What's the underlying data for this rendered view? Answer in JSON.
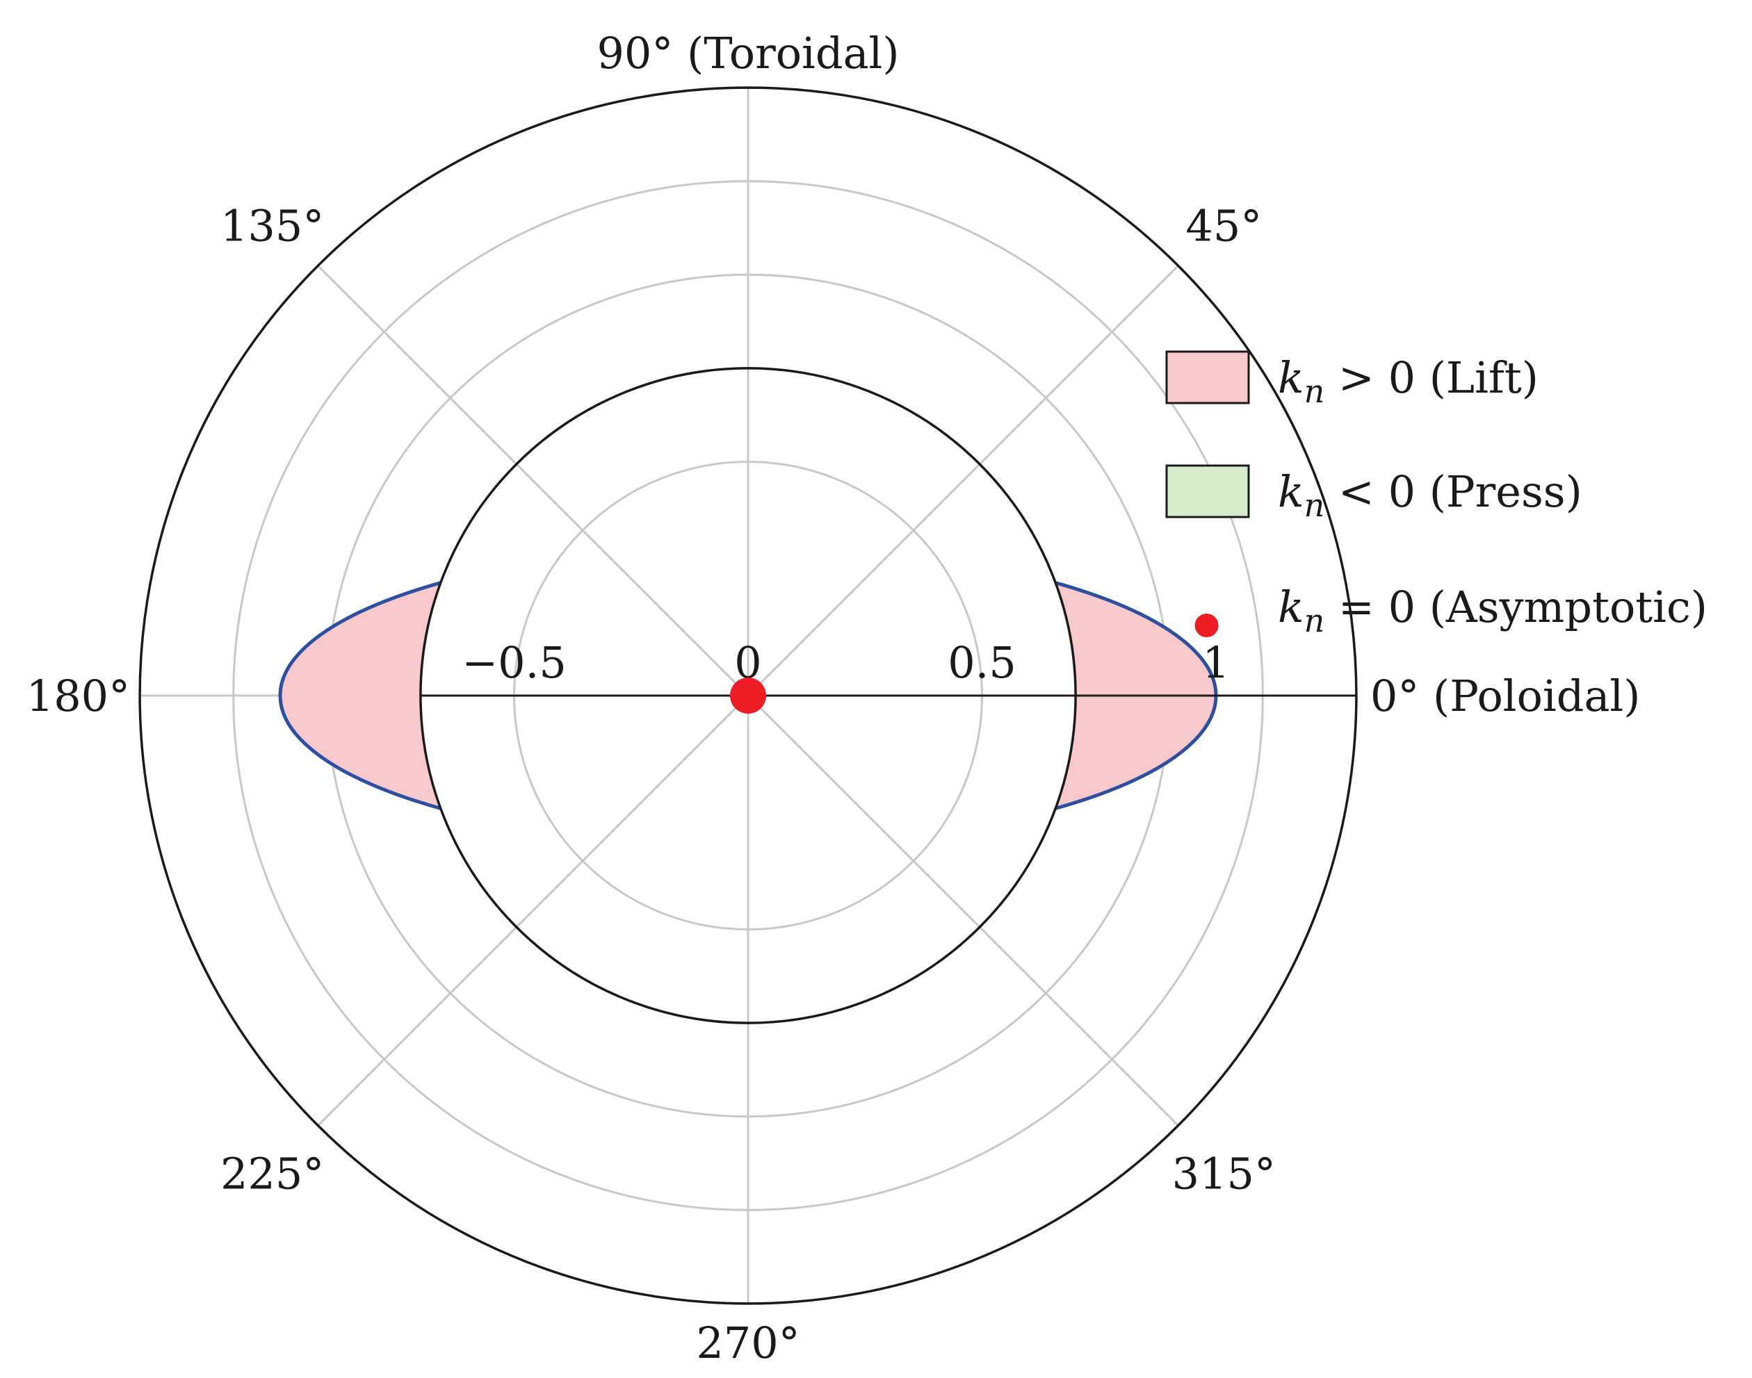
{
  "chart_data": {
    "type": "polar",
    "title": "",
    "angle_labels": [
      {
        "angle": 0,
        "text": "0° (Poloidal)"
      },
      {
        "angle": 45,
        "text": "45°"
      },
      {
        "angle": 90,
        "text": "90° (Toroidal)"
      },
      {
        "angle": 135,
        "text": "135°"
      },
      {
        "angle": 180,
        "text": "180°"
      },
      {
        "angle": 225,
        "text": "225°"
      },
      {
        "angle": 270,
        "text": "270°"
      },
      {
        "angle": 315,
        "text": "315°"
      }
    ],
    "axis_tick_labels": [
      {
        "value": -0.5,
        "text": "−0.5"
      },
      {
        "value": 0,
        "text": "0"
      },
      {
        "value": 0.5,
        "text": "0.5"
      },
      {
        "value": 1,
        "text": "1"
      }
    ],
    "rings": {
      "outer_boundary": 1.3,
      "inner_boundary": 0.7,
      "grid": [
        0.5,
        0.9,
        1.1
      ]
    },
    "curve": {
      "shape": "ellipse",
      "semi_axis_x": 1.0,
      "semi_axis_y": 0.32,
      "color": "#2e4fa0"
    },
    "regions": [
      {
        "name": "lift",
        "fill": "#f7c9cc",
        "description": "between inner circle and curve, near 0° and 180°"
      }
    ],
    "points": [
      {
        "name": "center",
        "x": 0,
        "y": 0,
        "color": "#ee1c25"
      },
      {
        "name": "asymptotic",
        "x": 0.98,
        "y": 0.15,
        "color": "#ee1c25"
      }
    ],
    "legend": {
      "position": "right",
      "entries": [
        {
          "key": "lift",
          "prefix": "k",
          "sub": "n",
          "rest": " > 0 (Lift)",
          "swatch": "#f7c9cc"
        },
        {
          "key": "press",
          "prefix": "k",
          "sub": "n",
          "rest": " < 0 (Press)",
          "swatch": "#d4ecc9"
        },
        {
          "key": "asym",
          "prefix": "k",
          "sub": "n",
          "rest": " = 0 (Asymptotic)",
          "marker": "#ee1c25"
        }
      ]
    }
  }
}
